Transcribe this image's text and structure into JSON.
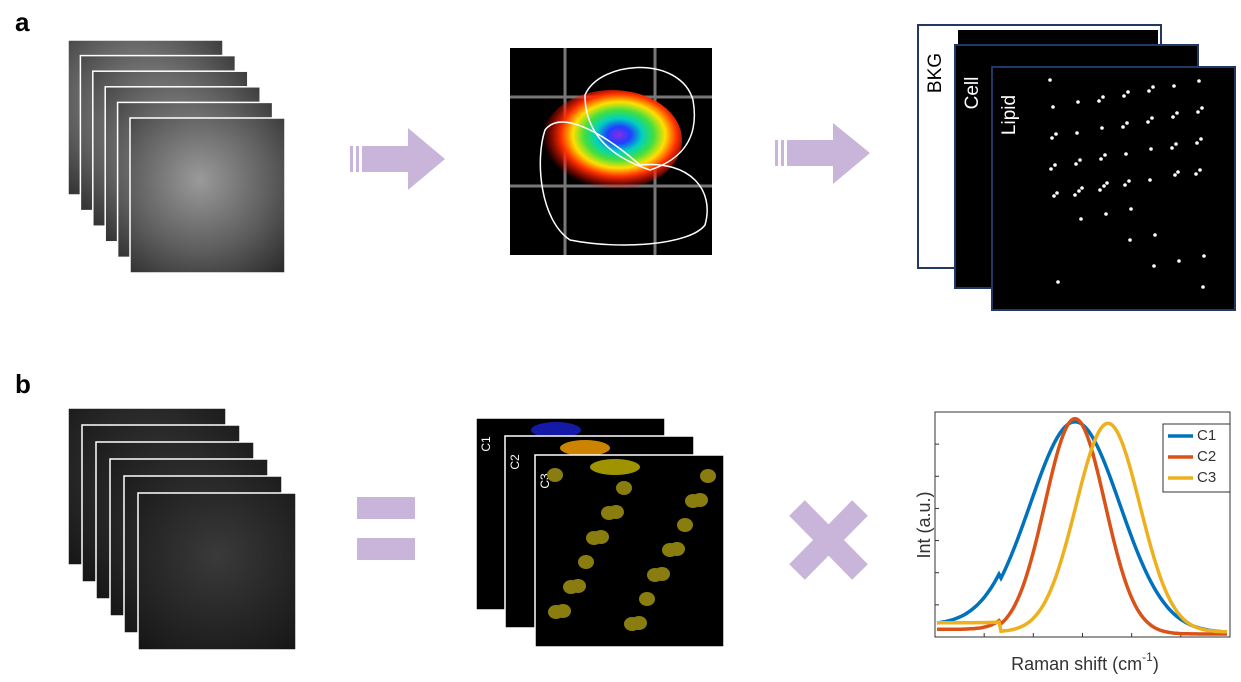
{
  "panel_a": {
    "label": "a",
    "masks": [
      "BKG",
      "Cell",
      "Lipid"
    ]
  },
  "panel_b": {
    "label": "b",
    "components": [
      "C1",
      "C2",
      "C3"
    ],
    "plot": {
      "ylabel": "Int (a.u.)",
      "xlabel_main": "Raman shift (cm",
      "xlabel_sup": "-1",
      "xlabel_end": ")",
      "legend": [
        "C1",
        "C2",
        "C3"
      ]
    }
  }
}
